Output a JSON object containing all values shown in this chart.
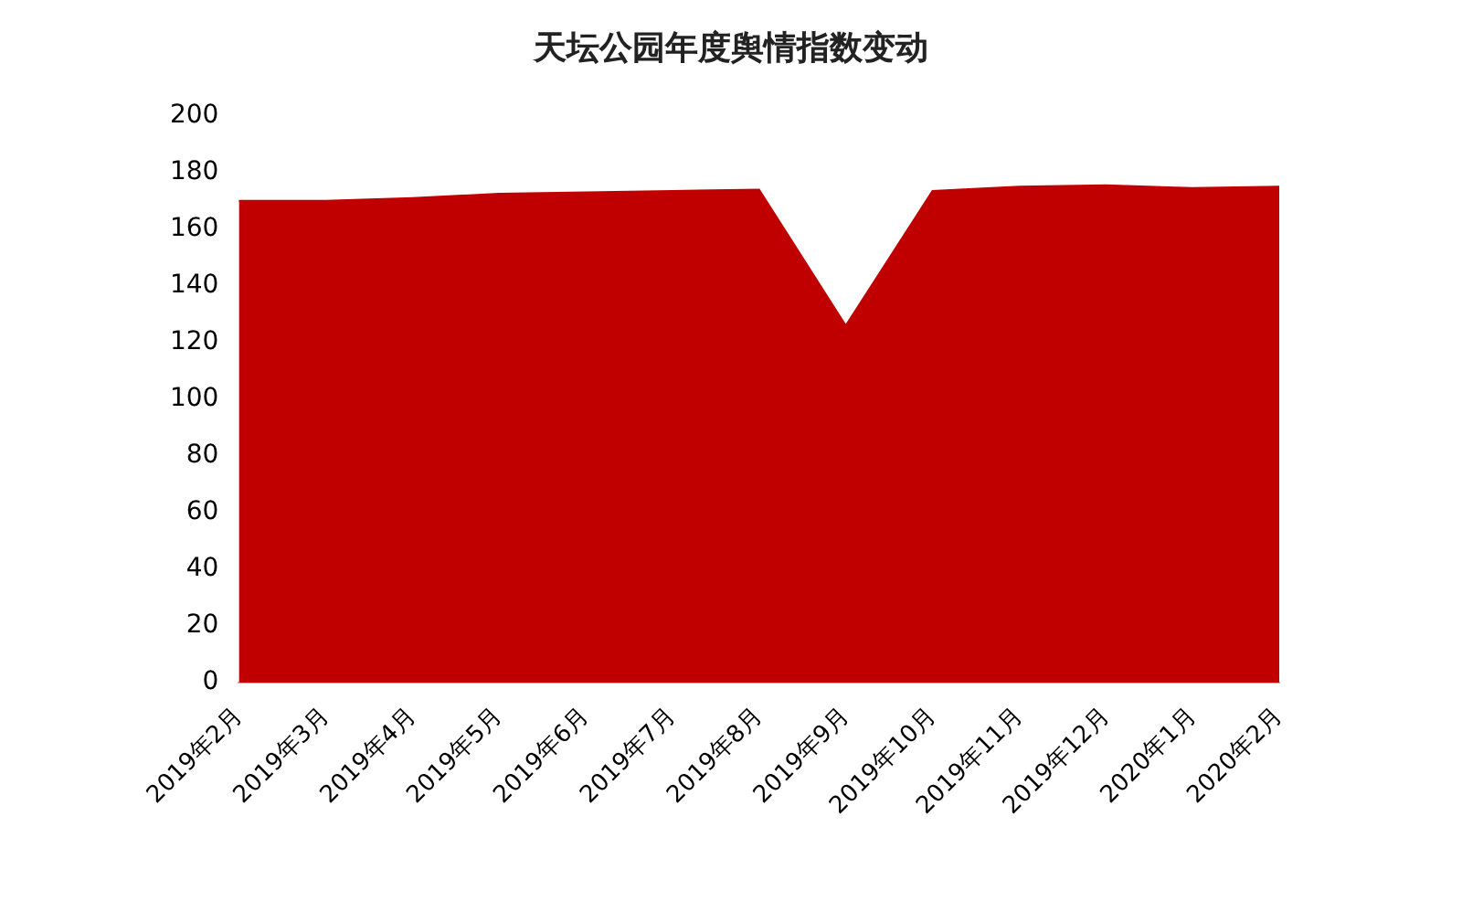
{
  "chart_data": {
    "type": "area",
    "title": "天坛公园年度舆情指数变动",
    "categories": [
      "2019年2月",
      "2019年3月",
      "2019年4月",
      "2019年5月",
      "2019年6月",
      "2019年7月",
      "2019年8月",
      "2019年9月",
      "2019年10月",
      "2019年11月",
      "2019年12月",
      "2020年1月",
      "2020年2月"
    ],
    "series": [
      {
        "color": "#c00000",
        "values": [
          170,
          170,
          171,
          172.5,
          173,
          173.5,
          174,
          126,
          173.5,
          175,
          175.5,
          174.5,
          175
        ]
      }
    ],
    "ylim": [
      0,
      200
    ],
    "yticks": [
      0,
      20,
      40,
      60,
      80,
      100,
      120,
      140,
      160,
      180,
      200
    ],
    "grid": false,
    "legend": false
  }
}
